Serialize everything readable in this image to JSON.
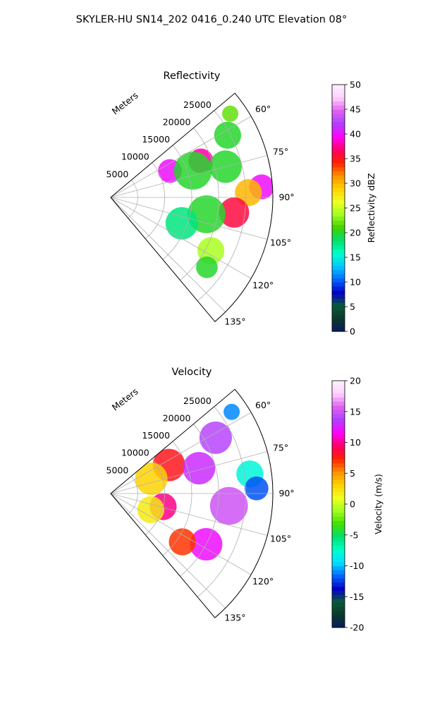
{
  "figure": {
    "title": "SKYLER-HU  SN14_202  0416_0.240 UTC Elevation 08°"
  },
  "chart_data": [
    {
      "type": "heatmap",
      "projection": "polar-sector",
      "title": "Reflectivity",
      "r_label": "Meters",
      "r_ticks": [
        "5000",
        "10000",
        "15000",
        "20000",
        "25000"
      ],
      "r_tick_values": [
        5000,
        10000,
        15000,
        20000,
        25000
      ],
      "r_max": 30000,
      "theta_range_deg": [
        50,
        140
      ],
      "theta_ticks": [
        "60°",
        "75°",
        "90°",
        "105°",
        "120°",
        "135°"
      ],
      "theta_tick_values": [
        60,
        75,
        90,
        105,
        120,
        135
      ],
      "grid": true,
      "colorbar": {
        "label": "Reflectivity dBZ",
        "min": 0,
        "max": 50,
        "ticks": [
          "0",
          "5",
          "10",
          "15",
          "20",
          "25",
          "30",
          "35",
          "40",
          "45",
          "50"
        ],
        "colormap_stops": [
          "#0a1a5e",
          "#0b3a2a",
          "#0a5a3a",
          "#0000c8",
          "#0066ff",
          "#00c8ff",
          "#00ffc8",
          "#00e070",
          "#40d000",
          "#a0ff20",
          "#f0ff20",
          "#ffd000",
          "#ff9000",
          "#ff2000",
          "#ff0060",
          "#ff00ff",
          "#b040ff",
          "#e060f0",
          "#ffd0ff",
          "#fff0ff"
        ]
      },
      "features": [
        {
          "theta_deg": 55,
          "r_m": 27000,
          "value": 22,
          "size_m": 1500
        },
        {
          "theta_deg": 62,
          "r_m": 24500,
          "value": 20,
          "size_m": 2500
        },
        {
          "theta_deg": 66,
          "r_m": 12000,
          "value": 40,
          "size_m": 2200
        },
        {
          "theta_deg": 68,
          "r_m": 18000,
          "value": 38,
          "size_m": 2300
        },
        {
          "theta_deg": 72,
          "r_m": 16000,
          "value": 20,
          "size_m": 3500
        },
        {
          "theta_deg": 75,
          "r_m": 22000,
          "value": 20,
          "size_m": 3000
        },
        {
          "theta_deg": 86,
          "r_m": 28000,
          "value": 40,
          "size_m": 2300
        },
        {
          "theta_deg": 88,
          "r_m": 25500,
          "value": 30,
          "size_m": 2500
        },
        {
          "theta_deg": 97,
          "r_m": 23000,
          "value": 36,
          "size_m": 2800
        },
        {
          "theta_deg": 100,
          "r_m": 18000,
          "value": 20,
          "size_m": 3500
        },
        {
          "theta_deg": 110,
          "r_m": 14000,
          "value": 18,
          "size_m": 3000
        },
        {
          "theta_deg": 118,
          "r_m": 21000,
          "value": 24,
          "size_m": 2500
        },
        {
          "theta_deg": 126,
          "r_m": 22000,
          "value": 20,
          "size_m": 2000
        }
      ]
    },
    {
      "type": "heatmap",
      "projection": "polar-sector",
      "title": "Velocity",
      "r_label": "Meters",
      "r_ticks": [
        "5000",
        "10000",
        "15000",
        "20000",
        "25000"
      ],
      "r_tick_values": [
        5000,
        10000,
        15000,
        20000,
        25000
      ],
      "r_max": 30000,
      "theta_range_deg": [
        50,
        140
      ],
      "theta_ticks": [
        "60°",
        "75°",
        "90°",
        "105°",
        "120°",
        "135°"
      ],
      "theta_tick_values": [
        60,
        75,
        90,
        105,
        120,
        135
      ],
      "grid": true,
      "colorbar": {
        "label": "Velocity (m/s)",
        "min": -20,
        "max": 20,
        "ticks": [
          "-20",
          "-15",
          "-10",
          "-5",
          "0",
          "5",
          "10",
          "15",
          "20"
        ],
        "colormap_stops": [
          "#0a1a5e",
          "#0b3a2a",
          "#0a5a3a",
          "#0000c8",
          "#0066ff",
          "#00e0ff",
          "#00ffc8",
          "#00e070",
          "#40e000",
          "#a0ff20",
          "#f0ff20",
          "#ffd000",
          "#ff9000",
          "#ff2000",
          "#ff0060",
          "#ff00ff",
          "#b040ff",
          "#e060f0",
          "#ffd0ff",
          "#fff0ff"
        ]
      },
      "features": [
        {
          "theta_deg": 56,
          "r_m": 27000,
          "value": -11,
          "size_m": 1500
        },
        {
          "theta_deg": 62,
          "r_m": 22000,
          "value": 14,
          "size_m": 3000
        },
        {
          "theta_deg": 64,
          "r_m": 12000,
          "value": 8,
          "size_m": 3000
        },
        {
          "theta_deg": 70,
          "r_m": 8000,
          "value": 3,
          "size_m": 3000
        },
        {
          "theta_deg": 74,
          "r_m": 17000,
          "value": 13,
          "size_m": 3000
        },
        {
          "theta_deg": 82,
          "r_m": 26000,
          "value": -8,
          "size_m": 2500
        },
        {
          "theta_deg": 88,
          "r_m": 27000,
          "value": -12,
          "size_m": 2200
        },
        {
          "theta_deg": 96,
          "r_m": 22000,
          "value": 15,
          "size_m": 3500
        },
        {
          "theta_deg": 104,
          "r_m": 10000,
          "value": 10,
          "size_m": 2500
        },
        {
          "theta_deg": 112,
          "r_m": 8000,
          "value": 2,
          "size_m": 2500
        },
        {
          "theta_deg": 118,
          "r_m": 20000,
          "value": 12,
          "size_m": 3000
        },
        {
          "theta_deg": 124,
          "r_m": 16000,
          "value": 7,
          "size_m": 2500
        }
      ]
    }
  ]
}
